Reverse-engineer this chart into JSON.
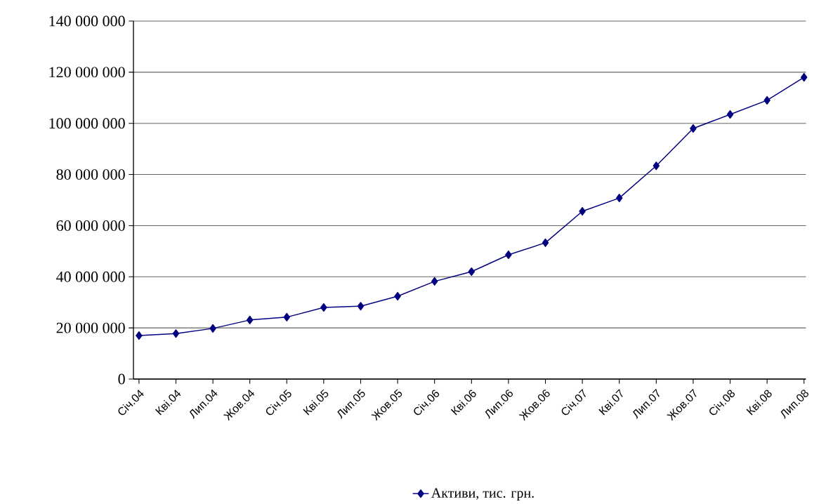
{
  "chart_data": {
    "type": "line",
    "categories": [
      "Січ.04",
      "Кві.04",
      "Лип.04",
      "Жов.04",
      "Січ.05",
      "Кві.05",
      "Лип.05",
      "Жов.05",
      "Січ.06",
      "Кві.06",
      "Лип.06",
      "Жов.06",
      "Січ.07",
      "Кві.07",
      "Лип.07",
      "Жов.07",
      "Січ.08",
      "Кві.08",
      "Лип.08"
    ],
    "series": [
      {
        "name": "Активи, тис. грн.",
        "color": "#000080",
        "values": [
          17000000,
          17800000,
          19800000,
          23100000,
          24200000,
          28000000,
          28500000,
          32400000,
          38200000,
          42000000,
          48600000,
          53300000,
          65600000,
          70800000,
          83400000,
          98000000,
          103500000,
          109000000,
          118000000
        ]
      }
    ],
    "ylim": [
      0,
      140000000
    ],
    "yticks": [
      0,
      {
        "value": 20000000,
        "label": "20 000 000"
      },
      {
        "value": 40000000,
        "label": "40 000 000"
      },
      {
        "value": 60000000,
        "label": "60 000 000"
      },
      {
        "value": 80000000,
        "label": "80 000 000"
      },
      {
        "value": 100000000,
        "label": "100 000 000"
      },
      {
        "value": 120000000,
        "label": "120 000 000"
      },
      {
        "value": 140000000,
        "label": "140 000 000"
      }
    ],
    "grid": "y",
    "legend": "bottom",
    "marker": "diamond",
    "line_style": "solid"
  }
}
